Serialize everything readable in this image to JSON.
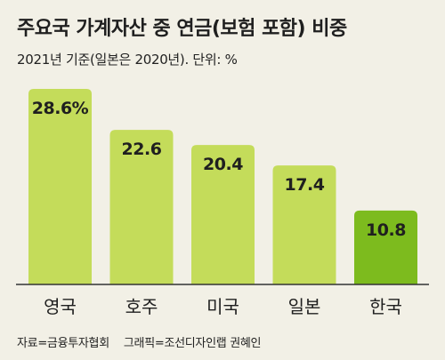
{
  "title": "주요국 가계자산 중 연금(보험 포함) 비중",
  "subtitle": "2021년 기준(일본은 2020년). 단위: %",
  "source": "자료=금융투자협회",
  "credit": "그래픽=조선디자인랩 권혜인",
  "colors": {
    "background": "#f2f0e6",
    "bar": "#c4dc5a",
    "highlight": "#7dbb1e",
    "baseline": "#333333",
    "text": "#1f1f1f"
  },
  "chart_data": {
    "type": "bar",
    "categories": [
      "영국",
      "호주",
      "미국",
      "일본",
      "한국"
    ],
    "values": [
      28.6,
      22.6,
      20.4,
      17.4,
      10.8
    ],
    "value_labels": [
      "28.6%",
      "22.6",
      "20.4",
      "17.4",
      "10.8"
    ],
    "highlight": "한국",
    "title": "주요국 가계자산 중 연금(보험 포함) 비중",
    "subtitle": "2021년 기준(일본은 2020년). 단위: %",
    "xlabel": "",
    "ylabel": "",
    "ylim": [
      0,
      28.6
    ],
    "grid": false,
    "legend": "none"
  }
}
